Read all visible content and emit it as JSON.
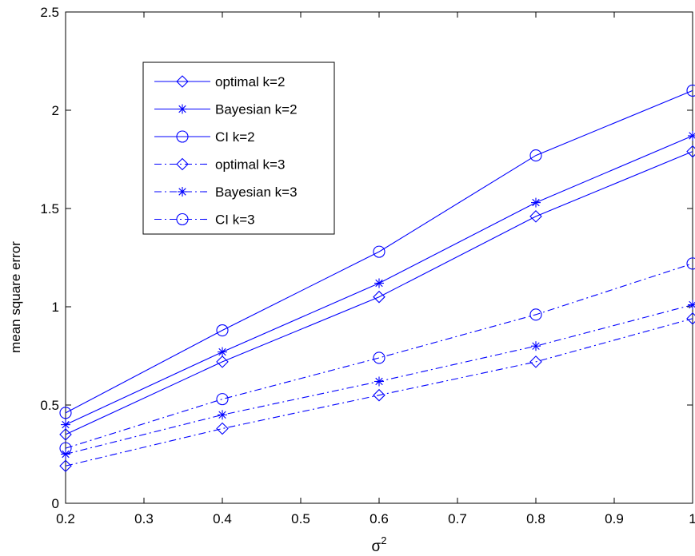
{
  "chart_data": {
    "type": "line",
    "title": "",
    "xlabel": "σ",
    "xlabel_superscript": "2",
    "ylabel": "mean square error",
    "xlim": [
      0.2,
      1
    ],
    "ylim": [
      0,
      2.5
    ],
    "xticks": [
      "0.2",
      "0.3",
      "0.4",
      "0.5",
      "0.6",
      "0.7",
      "0.8",
      "0.9",
      "1"
    ],
    "xtick_values": [
      0.2,
      0.3,
      0.4,
      0.5,
      0.6,
      0.7,
      0.8,
      0.9,
      1.0
    ],
    "yticks": [
      "0",
      "0.5",
      "1",
      "1.5",
      "2",
      "2.5"
    ],
    "ytick_values": [
      0,
      0.5,
      1,
      1.5,
      2,
      2.5
    ],
    "grid": false,
    "legend_position": "top-left",
    "color": "#0000ff",
    "x": [
      0.2,
      0.4,
      0.6,
      0.8,
      1.0
    ],
    "series": [
      {
        "name": "optimal k=2",
        "marker": "diamond",
        "line": "solid",
        "values": [
          0.35,
          0.72,
          1.05,
          1.46,
          1.79
        ]
      },
      {
        "name": "Bayesian k=2",
        "marker": "asterisk",
        "line": "solid",
        "values": [
          0.4,
          0.77,
          1.12,
          1.53,
          1.87
        ]
      },
      {
        "name": "CI k=2",
        "marker": "circle",
        "line": "solid",
        "values": [
          0.46,
          0.88,
          1.28,
          1.77,
          2.1
        ]
      },
      {
        "name": "optimal k=3",
        "marker": "diamond",
        "line": "dashdot",
        "values": [
          0.19,
          0.38,
          0.55,
          0.72,
          0.94
        ]
      },
      {
        "name": "Bayesian k=3",
        "marker": "asterisk",
        "line": "dashdot",
        "values": [
          0.25,
          0.45,
          0.62,
          0.8,
          1.01
        ]
      },
      {
        "name": "CI k=3",
        "marker": "circle",
        "line": "dashdot",
        "values": [
          0.28,
          0.53,
          0.74,
          0.96,
          1.22
        ]
      }
    ]
  }
}
